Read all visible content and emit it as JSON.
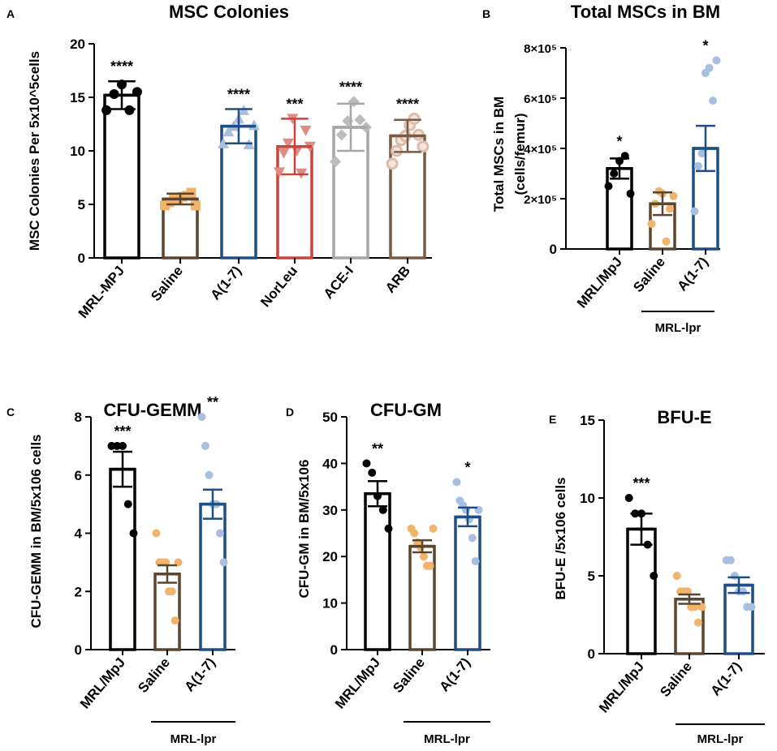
{
  "colors": {
    "black": "#000000",
    "saline": "#5b4632",
    "saline_dot": "#f2b46b",
    "a17": "#1f4e85",
    "a17_dot": "#a7c0e0",
    "norleu": "#c8443c",
    "norleu_dot": "#e08c84",
    "acei": "#a6a6a6",
    "acei_dot": "#bdbdbd",
    "arb": "#7a5a45",
    "arb_dot": "#dcbdab"
  },
  "chart_data": [
    {
      "panel": "A",
      "type": "bar",
      "title": "MSC Colonies",
      "ylabel": "MSC Colonies Per 5x10^5cells",
      "ylim": [
        0,
        20
      ],
      "yticks": [
        0,
        5,
        10,
        15,
        20
      ],
      "yticklabels": [
        "0",
        "5",
        "10",
        "15",
        "20"
      ],
      "categories": [
        "MRL-MPJ",
        "Saline",
        "A(1-7)",
        "NorLeu",
        "ACE-I",
        "ARB"
      ],
      "values": [
        15.2,
        5.5,
        12.3,
        10.4,
        12.2,
        11.4
      ],
      "errors": [
        1.3,
        0.5,
        1.6,
        2.6,
        2.2,
        1.5
      ],
      "significance": [
        "****",
        "",
        "****",
        "***",
        "****",
        "****"
      ],
      "colors": [
        "black",
        "saline",
        "a17",
        "norleu",
        "acei",
        "arb"
      ],
      "dot_colors": [
        "black",
        "saline_dot",
        "a17_dot",
        "norleu_dot",
        "acei_dot",
        "arb_dot"
      ],
      "markers": [
        "circle",
        "square",
        "triangle-up",
        "triangle-down",
        "diamond",
        "circle-open"
      ],
      "points": [
        [
          13.8,
          15.3,
          16.2,
          13.8,
          15.5
        ],
        [
          4.9,
          5.2,
          5.5,
          5.5,
          5.7,
          5.8,
          6.1,
          4.9
        ],
        [
          10.7,
          11.8,
          12.3,
          13.0,
          13.8,
          10.6,
          12.4
        ],
        [
          8.0,
          9.8,
          10.7,
          13.0,
          10.0,
          7.9,
          11.9,
          10.4
        ],
        [
          9.0,
          11.5,
          12.8,
          14.6,
          12.9,
          12.2
        ],
        [
          8.8,
          10.0,
          11.0,
          11.4,
          12.4,
          13.0,
          11.5,
          10.4
        ]
      ]
    },
    {
      "panel": "B",
      "type": "bar",
      "title": "Total MSCs in BM",
      "ylabel": "Total MSCs in BM",
      "ylabel2": "(cells/femur)",
      "ylim": [
        0,
        800000
      ],
      "yticks": [
        0,
        200000,
        400000,
        600000,
        800000
      ],
      "yticklabels": [
        "0",
        "2×10⁵",
        "4×10⁵",
        "6×10⁵",
        "8×10⁵"
      ],
      "categories": [
        "MRL/MpJ",
        "Saline",
        "A(1-7)"
      ],
      "values": [
        320000,
        180000,
        400000
      ],
      "errors": [
        40000,
        45000,
        90000
      ],
      "significance": [
        "*",
        "",
        "*"
      ],
      "colors": [
        "black",
        "saline",
        "a17"
      ],
      "dot_colors": [
        "black",
        "saline_dot",
        "a17_dot"
      ],
      "markers": [
        "circle",
        "circle",
        "circle"
      ],
      "points": [
        [
          250000,
          300000,
          350000,
          370000,
          220000
        ],
        [
          100000,
          180000,
          230000,
          220000,
          30000,
          160000,
          210000
        ],
        [
          150000,
          330000,
          380000,
          700000,
          720000,
          590000,
          750000
        ]
      ],
      "group_label": "MRL-lpr"
    },
    {
      "panel": "C",
      "type": "bar",
      "title": "CFU-GEMM",
      "ylabel": "CFU-GEMM in BM/5x106 cells",
      "ylim": [
        0,
        8
      ],
      "yticks": [
        0,
        2,
        4,
        6,
        8
      ],
      "yticklabels": [
        "0",
        "2",
        "4",
        "6",
        "8"
      ],
      "categories": [
        "MRL/MpJ",
        "Saline",
        "A(1-7)"
      ],
      "values": [
        6.2,
        2.6,
        5.0
      ],
      "errors": [
        0.6,
        0.3,
        0.5
      ],
      "significance": [
        "***",
        "",
        "**"
      ],
      "colors": [
        "black",
        "saline",
        "a17"
      ],
      "dot_colors": [
        "black",
        "saline_dot",
        "a17_dot"
      ],
      "markers": [
        "circle",
        "circle",
        "circle"
      ],
      "points": [
        [
          7.0,
          7.0,
          7.0,
          5.0,
          4.0
        ],
        [
          4.0,
          3.0,
          3.0,
          3.0,
          2.0,
          2.0,
          1.0,
          3.0
        ],
        [
          8.0,
          7.0,
          6.0,
          5.0,
          5.0,
          4.0,
          3.0
        ]
      ],
      "group_label": "MRL-lpr"
    },
    {
      "panel": "D",
      "type": "bar",
      "title": "CFU-GM",
      "ylabel": "CFU-GM in BM/5x106",
      "ylim": [
        0,
        50
      ],
      "yticks": [
        0,
        10,
        20,
        30,
        40,
        50
      ],
      "yticklabels": [
        "0",
        "10",
        "20",
        "30",
        "40",
        "50"
      ],
      "categories": [
        "MRL/MpJ",
        "Saline",
        "A(1-7)"
      ],
      "values": [
        33.5,
        22.2,
        28.5
      ],
      "errors": [
        2.7,
        1.3,
        2.0
      ],
      "significance": [
        "**",
        "",
        "*"
      ],
      "colors": [
        "black",
        "saline",
        "a17"
      ],
      "dot_colors": [
        "black",
        "saline_dot",
        "a17_dot"
      ],
      "markers": [
        "circle",
        "circle",
        "circle"
      ],
      "points": [
        [
          40.0,
          38.0,
          33.0,
          30.0,
          26.0
        ],
        [
          26.0,
          25.0,
          23.0,
          22.0,
          20.0,
          18.0,
          18.0,
          26.0
        ],
        [
          36.0,
          32.0,
          31.0,
          30.0,
          28.0,
          24.0,
          19.0,
          30.0
        ]
      ],
      "group_label": "MRL-lpr"
    },
    {
      "panel": "E",
      "type": "bar",
      "title": "BFU-E",
      "ylabel": "BFU-E /5x106 cells",
      "ylim": [
        0,
        15
      ],
      "yticks": [
        0,
        5,
        10,
        15
      ],
      "yticklabels": [
        "0",
        "5",
        "10",
        "15"
      ],
      "categories": [
        "MRL/MpJ",
        "Saline",
        "A(1-7)"
      ],
      "values": [
        8.0,
        3.5,
        4.4
      ],
      "errors": [
        1.0,
        0.3,
        0.5
      ],
      "significance": [
        "***",
        "",
        ""
      ],
      "colors": [
        "black",
        "saline",
        "a17"
      ],
      "dot_colors": [
        "black",
        "saline_dot",
        "a17_dot"
      ],
      "markers": [
        "circle",
        "circle",
        "circle"
      ],
      "points": [
        [
          10.0,
          9.0,
          9.0,
          7.0,
          5.0
        ],
        [
          5.0,
          4.0,
          4.0,
          4.0,
          3.0,
          3.0,
          2.0,
          3.0
        ],
        [
          6.0,
          6.0,
          5.0,
          4.0,
          4.0,
          3.0,
          3.0
        ]
      ],
      "group_label": "MRL-lpr"
    }
  ]
}
